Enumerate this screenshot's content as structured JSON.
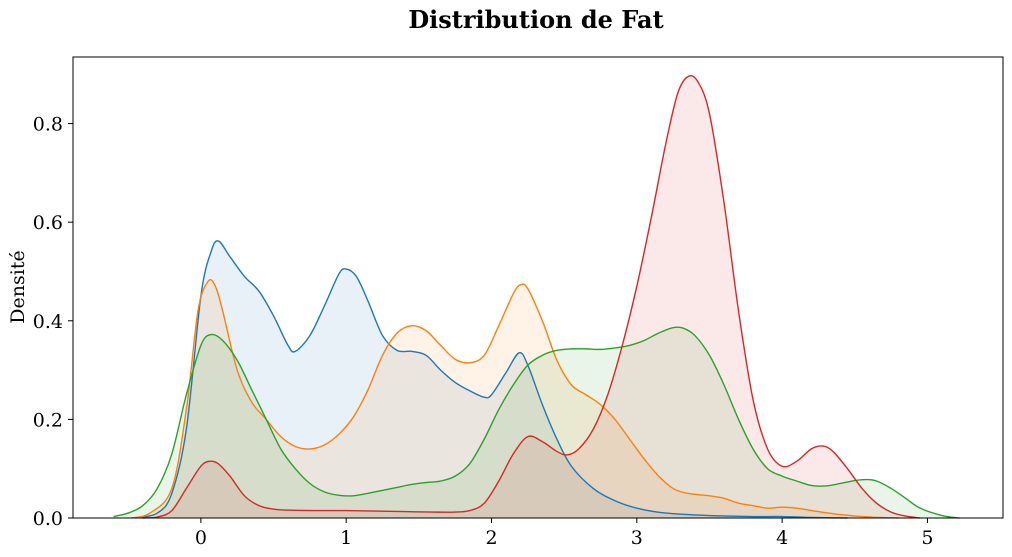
{
  "chart_data": {
    "type": "area",
    "title": "Distribution de Fat",
    "xlabel": "",
    "ylabel": "Densité",
    "xlim": [
      -0.88,
      5.52
    ],
    "ylim": [
      0,
      0.935
    ],
    "x_ticks": [
      0,
      1,
      2,
      3,
      4,
      5
    ],
    "x_tick_labels": [
      "0",
      "1",
      "2",
      "3",
      "4",
      "5"
    ],
    "y_ticks": [
      0.0,
      0.2,
      0.4,
      0.6,
      0.8
    ],
    "y_tick_labels": [
      "0.0",
      "0.2",
      "0.4",
      "0.6",
      "0.8"
    ],
    "grid": false,
    "legend": false,
    "fill_alpha": 0.1,
    "series": [
      {
        "color": "#1f77b4",
        "points": [
          [
            -0.45,
            0.0
          ],
          [
            -0.3,
            0.01
          ],
          [
            -0.2,
            0.05
          ],
          [
            -0.1,
            0.18
          ],
          [
            0.0,
            0.45
          ],
          [
            0.07,
            0.54
          ],
          [
            0.12,
            0.562
          ],
          [
            0.2,
            0.53
          ],
          [
            0.3,
            0.49
          ],
          [
            0.4,
            0.46
          ],
          [
            0.5,
            0.41
          ],
          [
            0.6,
            0.35
          ],
          [
            0.65,
            0.338
          ],
          [
            0.75,
            0.37
          ],
          [
            0.85,
            0.43
          ],
          [
            0.95,
            0.495
          ],
          [
            1.0,
            0.505
          ],
          [
            1.07,
            0.49
          ],
          [
            1.15,
            0.44
          ],
          [
            1.25,
            0.37
          ],
          [
            1.35,
            0.34
          ],
          [
            1.45,
            0.338
          ],
          [
            1.55,
            0.33
          ],
          [
            1.65,
            0.3
          ],
          [
            1.75,
            0.275
          ],
          [
            1.85,
            0.258
          ],
          [
            1.95,
            0.245
          ],
          [
            2.0,
            0.25
          ],
          [
            2.1,
            0.295
          ],
          [
            2.19,
            0.335
          ],
          [
            2.25,
            0.31
          ],
          [
            2.35,
            0.23
          ],
          [
            2.45,
            0.16
          ],
          [
            2.55,
            0.105
          ],
          [
            2.7,
            0.06
          ],
          [
            2.85,
            0.035
          ],
          [
            3.0,
            0.02
          ],
          [
            3.2,
            0.01
          ],
          [
            3.5,
            0.005
          ],
          [
            3.8,
            0.003
          ],
          [
            4.0,
            0.003
          ],
          [
            4.2,
            0.001
          ],
          [
            4.45,
            0.0
          ]
        ]
      },
      {
        "color": "#ff7f0e",
        "points": [
          [
            -0.48,
            0.0
          ],
          [
            -0.35,
            0.01
          ],
          [
            -0.2,
            0.06
          ],
          [
            -0.1,
            0.22
          ],
          [
            -0.02,
            0.42
          ],
          [
            0.05,
            0.48
          ],
          [
            0.1,
            0.47
          ],
          [
            0.15,
            0.42
          ],
          [
            0.25,
            0.3
          ],
          [
            0.35,
            0.235
          ],
          [
            0.45,
            0.2
          ],
          [
            0.55,
            0.165
          ],
          [
            0.65,
            0.145
          ],
          [
            0.75,
            0.14
          ],
          [
            0.85,
            0.148
          ],
          [
            0.95,
            0.17
          ],
          [
            1.05,
            0.205
          ],
          [
            1.15,
            0.26
          ],
          [
            1.25,
            0.33
          ],
          [
            1.35,
            0.375
          ],
          [
            1.45,
            0.39
          ],
          [
            1.55,
            0.38
          ],
          [
            1.65,
            0.35
          ],
          [
            1.75,
            0.322
          ],
          [
            1.85,
            0.315
          ],
          [
            1.95,
            0.33
          ],
          [
            2.05,
            0.39
          ],
          [
            2.15,
            0.455
          ],
          [
            2.2,
            0.473
          ],
          [
            2.25,
            0.465
          ],
          [
            2.35,
            0.4
          ],
          [
            2.45,
            0.32
          ],
          [
            2.55,
            0.27
          ],
          [
            2.65,
            0.25
          ],
          [
            2.75,
            0.23
          ],
          [
            2.85,
            0.2
          ],
          [
            2.95,
            0.16
          ],
          [
            3.05,
            0.12
          ],
          [
            3.15,
            0.085
          ],
          [
            3.25,
            0.06
          ],
          [
            3.35,
            0.05
          ],
          [
            3.5,
            0.045
          ],
          [
            3.6,
            0.04
          ],
          [
            3.7,
            0.03
          ],
          [
            3.8,
            0.025
          ],
          [
            3.9,
            0.02
          ],
          [
            4.0,
            0.022
          ],
          [
            4.1,
            0.02
          ],
          [
            4.25,
            0.013
          ],
          [
            4.4,
            0.007
          ],
          [
            4.6,
            0.002
          ],
          [
            4.8,
            0.0
          ]
        ]
      },
      {
        "color": "#2ca02c",
        "points": [
          [
            -0.6,
            0.003
          ],
          [
            -0.5,
            0.01
          ],
          [
            -0.4,
            0.025
          ],
          [
            -0.3,
            0.06
          ],
          [
            -0.2,
            0.13
          ],
          [
            -0.1,
            0.25
          ],
          [
            0.0,
            0.35
          ],
          [
            0.07,
            0.372
          ],
          [
            0.15,
            0.36
          ],
          [
            0.25,
            0.32
          ],
          [
            0.35,
            0.26
          ],
          [
            0.45,
            0.2
          ],
          [
            0.55,
            0.14
          ],
          [
            0.65,
            0.1
          ],
          [
            0.75,
            0.07
          ],
          [
            0.85,
            0.053
          ],
          [
            0.95,
            0.046
          ],
          [
            1.05,
            0.045
          ],
          [
            1.15,
            0.05
          ],
          [
            1.25,
            0.056
          ],
          [
            1.35,
            0.062
          ],
          [
            1.45,
            0.068
          ],
          [
            1.55,
            0.072
          ],
          [
            1.65,
            0.075
          ],
          [
            1.75,
            0.085
          ],
          [
            1.85,
            0.11
          ],
          [
            1.95,
            0.16
          ],
          [
            2.05,
            0.22
          ],
          [
            2.15,
            0.27
          ],
          [
            2.25,
            0.31
          ],
          [
            2.35,
            0.33
          ],
          [
            2.45,
            0.34
          ],
          [
            2.55,
            0.343
          ],
          [
            2.65,
            0.343
          ],
          [
            2.75,
            0.342
          ],
          [
            2.85,
            0.345
          ],
          [
            2.95,
            0.35
          ],
          [
            3.05,
            0.36
          ],
          [
            3.15,
            0.375
          ],
          [
            3.25,
            0.386
          ],
          [
            3.32,
            0.385
          ],
          [
            3.4,
            0.37
          ],
          [
            3.5,
            0.33
          ],
          [
            3.6,
            0.27
          ],
          [
            3.7,
            0.2
          ],
          [
            3.8,
            0.14
          ],
          [
            3.9,
            0.1
          ],
          [
            4.0,
            0.085
          ],
          [
            4.1,
            0.075
          ],
          [
            4.2,
            0.066
          ],
          [
            4.3,
            0.065
          ],
          [
            4.4,
            0.07
          ],
          [
            4.5,
            0.076
          ],
          [
            4.58,
            0.078
          ],
          [
            4.65,
            0.075
          ],
          [
            4.75,
            0.06
          ],
          [
            4.85,
            0.04
          ],
          [
            4.95,
            0.02
          ],
          [
            5.1,
            0.005
          ],
          [
            5.22,
            0.0
          ]
        ]
      },
      {
        "color": "#d62728",
        "points": [
          [
            -0.4,
            0.0
          ],
          [
            -0.3,
            0.002
          ],
          [
            -0.2,
            0.015
          ],
          [
            -0.1,
            0.06
          ],
          [
            0.0,
            0.105
          ],
          [
            0.06,
            0.115
          ],
          [
            0.12,
            0.11
          ],
          [
            0.2,
            0.085
          ],
          [
            0.3,
            0.045
          ],
          [
            0.4,
            0.025
          ],
          [
            0.5,
            0.018
          ],
          [
            0.6,
            0.016
          ],
          [
            0.8,
            0.015
          ],
          [
            1.0,
            0.015
          ],
          [
            1.2,
            0.014
          ],
          [
            1.4,
            0.013
          ],
          [
            1.6,
            0.012
          ],
          [
            1.75,
            0.012
          ],
          [
            1.85,
            0.015
          ],
          [
            1.95,
            0.03
          ],
          [
            2.05,
            0.075
          ],
          [
            2.15,
            0.13
          ],
          [
            2.25,
            0.165
          ],
          [
            2.35,
            0.155
          ],
          [
            2.45,
            0.135
          ],
          [
            2.52,
            0.128
          ],
          [
            2.6,
            0.14
          ],
          [
            2.7,
            0.18
          ],
          [
            2.8,
            0.25
          ],
          [
            2.9,
            0.35
          ],
          [
            3.0,
            0.47
          ],
          [
            3.1,
            0.61
          ],
          [
            3.2,
            0.76
          ],
          [
            3.28,
            0.86
          ],
          [
            3.35,
            0.895
          ],
          [
            3.42,
            0.885
          ],
          [
            3.5,
            0.82
          ],
          [
            3.6,
            0.64
          ],
          [
            3.7,
            0.42
          ],
          [
            3.8,
            0.24
          ],
          [
            3.9,
            0.14
          ],
          [
            4.0,
            0.105
          ],
          [
            4.1,
            0.115
          ],
          [
            4.2,
            0.14
          ],
          [
            4.28,
            0.146
          ],
          [
            4.35,
            0.135
          ],
          [
            4.45,
            0.1
          ],
          [
            4.55,
            0.06
          ],
          [
            4.65,
            0.03
          ],
          [
            4.75,
            0.012
          ],
          [
            4.85,
            0.004
          ],
          [
            4.95,
            0.0
          ]
        ]
      }
    ]
  }
}
